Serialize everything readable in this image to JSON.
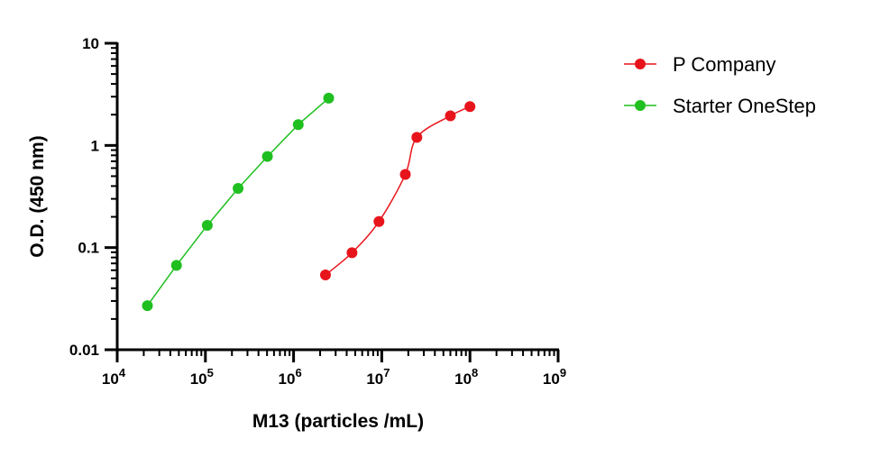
{
  "chart_data": {
    "type": "scatter",
    "xlabel": "M13 (particles /mL)",
    "ylabel": "O.D. (450 nm)",
    "xscale": "log",
    "yscale": "log",
    "xlim": [
      10000,
      1000000000
    ],
    "ylim": [
      0.01,
      10
    ],
    "x_ticks": [
      {
        "value": 10000,
        "base": "10",
        "exp": "4"
      },
      {
        "value": 100000,
        "base": "10",
        "exp": "5"
      },
      {
        "value": 1000000,
        "base": "10",
        "exp": "6"
      },
      {
        "value": 10000000,
        "base": "10",
        "exp": "7"
      },
      {
        "value": 100000000,
        "base": "10",
        "exp": "8"
      },
      {
        "value": 1000000000,
        "base": "10",
        "exp": "9"
      }
    ],
    "y_ticks": [
      {
        "value": 10,
        "label": "10"
      },
      {
        "value": 1,
        "label": "1"
      },
      {
        "value": 0.1,
        "label": "0.1"
      },
      {
        "value": 0.01,
        "label": "0.01"
      }
    ],
    "grid": false,
    "legend_position": "top-right",
    "series": [
      {
        "name": "P Company",
        "color": "#e8141b",
        "line": "sigmoid-fit",
        "points": [
          {
            "x": 2300000,
            "y": 0.054
          },
          {
            "x": 4600000,
            "y": 0.089
          },
          {
            "x": 9300000,
            "y": 0.18
          },
          {
            "x": 18500000,
            "y": 0.52
          },
          {
            "x": 25000000,
            "y": 1.2
          },
          {
            "x": 60000000,
            "y": 1.95
          },
          {
            "x": 100000000,
            "y": 2.4
          }
        ]
      },
      {
        "name": "Starter OneStep",
        "color": "#1fbf1f",
        "line": "connected",
        "points": [
          {
            "x": 22000,
            "y": 0.027
          },
          {
            "x": 47000,
            "y": 0.067
          },
          {
            "x": 105000,
            "y": 0.165
          },
          {
            "x": 235000,
            "y": 0.38
          },
          {
            "x": 505000,
            "y": 0.78
          },
          {
            "x": 1130000,
            "y": 1.6
          },
          {
            "x": 2500000,
            "y": 2.9
          }
        ]
      }
    ]
  }
}
